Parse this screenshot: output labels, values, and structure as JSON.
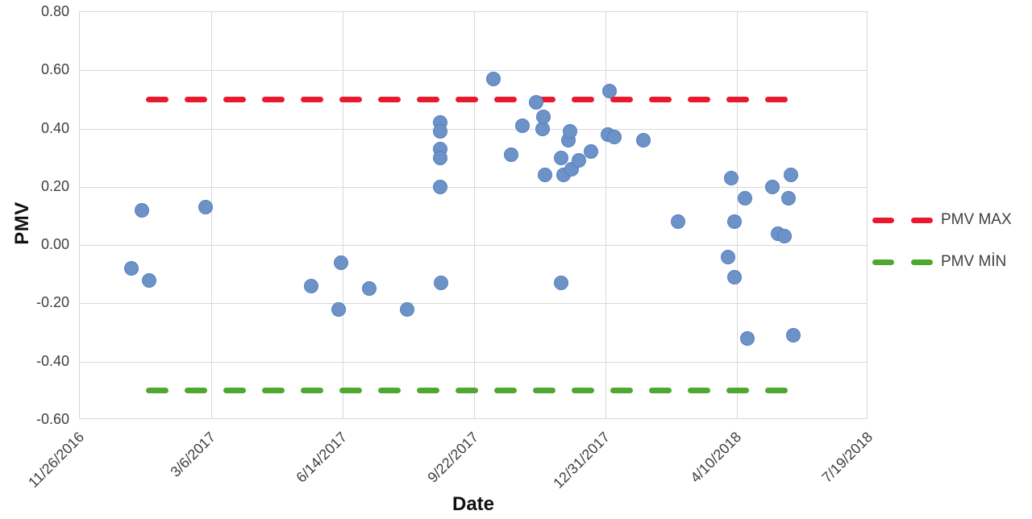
{
  "chart_data": {
    "type": "scatter",
    "title": "",
    "xlabel": "Date",
    "ylabel": "PMV",
    "grid": true,
    "legend_position": "right",
    "ylim": [
      -0.6,
      0.8
    ],
    "y_ticks": [
      {
        "value": 0.8,
        "label": "0.80"
      },
      {
        "value": 0.6,
        "label": "0.60"
      },
      {
        "value": 0.4,
        "label": "0.40"
      },
      {
        "value": 0.2,
        "label": "0.20"
      },
      {
        "value": 0.0,
        "label": "0.00"
      },
      {
        "value": -0.2,
        "label": "-0.20"
      },
      {
        "value": -0.4,
        "label": "-0.40"
      },
      {
        "value": -0.6,
        "label": "-0.60"
      }
    ],
    "x_range_days": [
      0,
      600
    ],
    "x_ticks": [
      {
        "day": 0,
        "label": "11/26/2016"
      },
      {
        "day": 100,
        "label": "3/6/2017"
      },
      {
        "day": 200,
        "label": "6/14/2017"
      },
      {
        "day": 300,
        "label": "9/22/2017"
      },
      {
        "day": 400,
        "label": "12/31/2017"
      },
      {
        "day": 500,
        "label": "4/10/2018"
      },
      {
        "day": 600,
        "label": "7/19/2018"
      }
    ],
    "points_series": {
      "name": "PMV",
      "marker_color": "#6D92C8",
      "marker_border": "#5480BE",
      "points": [
        {
          "day": 39,
          "pmv": -0.08
        },
        {
          "day": 47,
          "pmv": 0.12
        },
        {
          "day": 53,
          "pmv": -0.12
        },
        {
          "day": 96,
          "pmv": 0.13
        },
        {
          "day": 176,
          "pmv": -0.14
        },
        {
          "day": 197,
          "pmv": -0.22
        },
        {
          "day": 199,
          "pmv": -0.06
        },
        {
          "day": 220,
          "pmv": -0.15
        },
        {
          "day": 249,
          "pmv": -0.22
        },
        {
          "day": 274,
          "pmv": 0.42
        },
        {
          "day": 274,
          "pmv": 0.39
        },
        {
          "day": 274,
          "pmv": 0.33
        },
        {
          "day": 274,
          "pmv": 0.3
        },
        {
          "day": 274,
          "pmv": 0.2
        },
        {
          "day": 275,
          "pmv": -0.13
        },
        {
          "day": 315,
          "pmv": 0.57
        },
        {
          "day": 328,
          "pmv": 0.31
        },
        {
          "day": 337,
          "pmv": 0.41
        },
        {
          "day": 347,
          "pmv": 0.49
        },
        {
          "day": 352,
          "pmv": 0.4
        },
        {
          "day": 353,
          "pmv": 0.44
        },
        {
          "day": 354,
          "pmv": 0.24
        },
        {
          "day": 366,
          "pmv": -0.13
        },
        {
          "day": 366,
          "pmv": 0.3
        },
        {
          "day": 368,
          "pmv": 0.24
        },
        {
          "day": 372,
          "pmv": 0.36
        },
        {
          "day": 373,
          "pmv": 0.39
        },
        {
          "day": 374,
          "pmv": 0.26
        },
        {
          "day": 380,
          "pmv": 0.29
        },
        {
          "day": 389,
          "pmv": 0.32
        },
        {
          "day": 402,
          "pmv": 0.38
        },
        {
          "day": 403,
          "pmv": 0.53
        },
        {
          "day": 407,
          "pmv": 0.37
        },
        {
          "day": 429,
          "pmv": 0.36
        },
        {
          "day": 455,
          "pmv": 0.08
        },
        {
          "day": 493,
          "pmv": -0.04
        },
        {
          "day": 496,
          "pmv": 0.23
        },
        {
          "day": 498,
          "pmv": 0.08
        },
        {
          "day": 498,
          "pmv": -0.11
        },
        {
          "day": 506,
          "pmv": 0.16
        },
        {
          "day": 508,
          "pmv": -0.32
        },
        {
          "day": 527,
          "pmv": 0.2
        },
        {
          "day": 531,
          "pmv": 0.04
        },
        {
          "day": 536,
          "pmv": 0.03
        },
        {
          "day": 539,
          "pmv": 0.16
        },
        {
          "day": 541,
          "pmv": 0.24
        },
        {
          "day": 543,
          "pmv": -0.31
        }
      ]
    },
    "threshold_lines": [
      {
        "name": "PMV MAX",
        "value": 0.5,
        "color": "#E8192C",
        "day_start": 50,
        "day_end": 547
      },
      {
        "name": "PMV MİN",
        "value": -0.5,
        "color": "#4EA72E",
        "day_start": 50,
        "day_end": 547
      }
    ],
    "legend": [
      {
        "label": "PMV MAX",
        "color": "#E8192C"
      },
      {
        "label": "PMV MİN",
        "color": "#4EA72E"
      }
    ],
    "colors": {
      "grid": "#D9D9D9",
      "tick_text": "#3F3F3F"
    }
  }
}
